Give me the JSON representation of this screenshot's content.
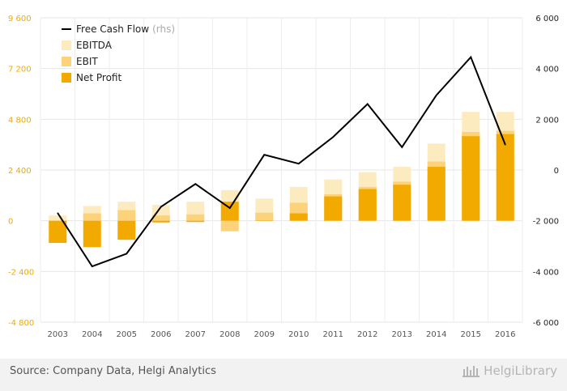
{
  "chart_data": {
    "type": "bar",
    "categories": [
      "2003",
      "2004",
      "2005",
      "2006",
      "2007",
      "2008",
      "2009",
      "2010",
      "2011",
      "2012",
      "2013",
      "2014",
      "2015",
      "2016"
    ],
    "series": [
      {
        "name": "EBITDA",
        "values": [
          250,
          700,
          900,
          750,
          900,
          1450,
          1050,
          1600,
          1950,
          2300,
          2550,
          3650,
          5150,
          5150
        ]
      },
      {
        "name": "EBIT",
        "values": [
          -100,
          350,
          500,
          250,
          300,
          -500,
          380,
          850,
          1250,
          1600,
          1850,
          2800,
          4200,
          4250
        ]
      },
      {
        "name": "Net Profit",
        "values": [
          -1050,
          -1250,
          -900,
          -80,
          -60,
          900,
          20,
          350,
          1150,
          1500,
          1700,
          2550,
          4000,
          4100
        ]
      },
      {
        "name": "Free Cash Flow",
        "axis": "right",
        "values": [
          -1700,
          -3800,
          -3300,
          -1450,
          -550,
          -1500,
          600,
          250,
          1300,
          2600,
          900,
          2950,
          4450,
          1000
        ]
      }
    ],
    "legend": {
      "position": "top-left",
      "entries": [
        {
          "label": "Free Cash Flow",
          "note": "(rhs)",
          "color": "#000000",
          "kind": "line"
        },
        {
          "label": "EBITDA",
          "note": "",
          "color": "#fdebc0",
          "kind": "box"
        },
        {
          "label": "EBIT",
          "note": "",
          "color": "#fcd27a",
          "kind": "box"
        },
        {
          "label": "Net Profit",
          "note": "",
          "color": "#f2a900",
          "kind": "box"
        }
      ]
    },
    "y_left": {
      "ylim": [
        -4800,
        9600
      ],
      "ticks": [
        9600,
        7200,
        4800,
        2400,
        0,
        -2400,
        -4800
      ],
      "tick_labels": [
        "9 600",
        "7 200",
        "4 800",
        "2 400",
        "0",
        "-2 400",
        "-4 800"
      ]
    },
    "y_right": {
      "ylim": [
        -6000,
        6000
      ],
      "ticks": [
        6000,
        4000,
        2000,
        0,
        -2000,
        -4000,
        -6000
      ],
      "tick_labels": [
        "6 000",
        "4 000",
        "2 000",
        "0",
        "-2 000",
        "-4 000",
        "-6 000"
      ]
    },
    "grid": true,
    "colors": {
      "ebitda": "#fdebc0",
      "ebit": "#fcd27a",
      "net_profit": "#f2a900",
      "fcf": "#000000"
    }
  },
  "footer": {
    "source": "Source: Company Data, Helgi Analytics",
    "brand": "HelgiLibrary"
  }
}
